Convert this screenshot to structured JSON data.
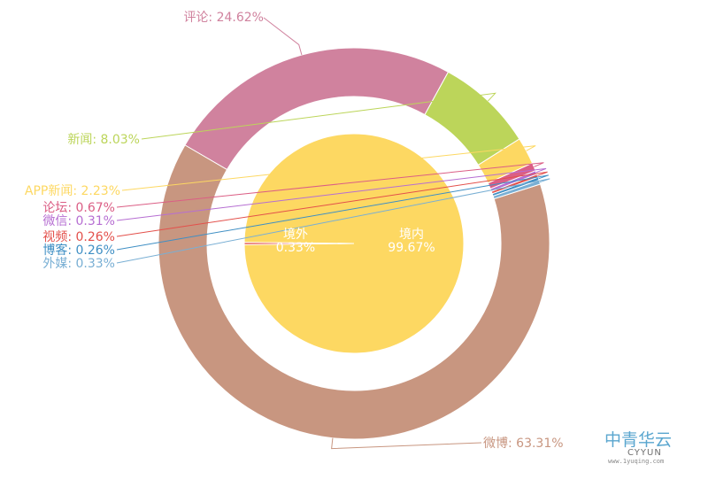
{
  "chart_data": [
    {
      "type": "pie",
      "title": "",
      "series": [
        {
          "name": "境内",
          "value": 99.67,
          "label": "境内",
          "percent_label": "99.67%",
          "color": "#fdd862"
        },
        {
          "name": "境外",
          "value": 0.33,
          "label": "境外",
          "percent_label": "0.33%",
          "color": "#e3504b"
        }
      ]
    },
    {
      "type": "pie",
      "title": "",
      "series": [
        {
          "name": "评论",
          "value": 24.62,
          "label": "评论: 24.62%",
          "color": "#d0829e"
        },
        {
          "name": "微博",
          "value": 63.31,
          "label": "微博: 63.31%",
          "color": "#c89680"
        },
        {
          "name": "外媒",
          "value": 0.33,
          "label": "外媒: 0.33%",
          "color": "#79afd4"
        },
        {
          "name": "博客",
          "value": 0.26,
          "label": "博客: 0.26%",
          "color": "#3f8fc4"
        },
        {
          "name": "视频",
          "value": 0.26,
          "label": "视频: 0.26%",
          "color": "#e3504b"
        },
        {
          "name": "微信",
          "value": 0.31,
          "label": "微信: 0.31%",
          "color": "#b66ed2"
        },
        {
          "name": "论坛",
          "value": 0.67,
          "label": "论坛: 0.67%",
          "color": "#db5e85"
        },
        {
          "name": "APP新闻",
          "value": 2.23,
          "label": "APP新闻: 2.23%",
          "color": "#fdd862"
        },
        {
          "name": "新闻",
          "value": 8.03,
          "label": "新闻: 8.03%",
          "color": "#bcd55a"
        }
      ]
    }
  ],
  "watermark": {
    "brand_cn": "中青华云",
    "brand_en": "CYYUN",
    "url": "www.1yuqing.com"
  }
}
